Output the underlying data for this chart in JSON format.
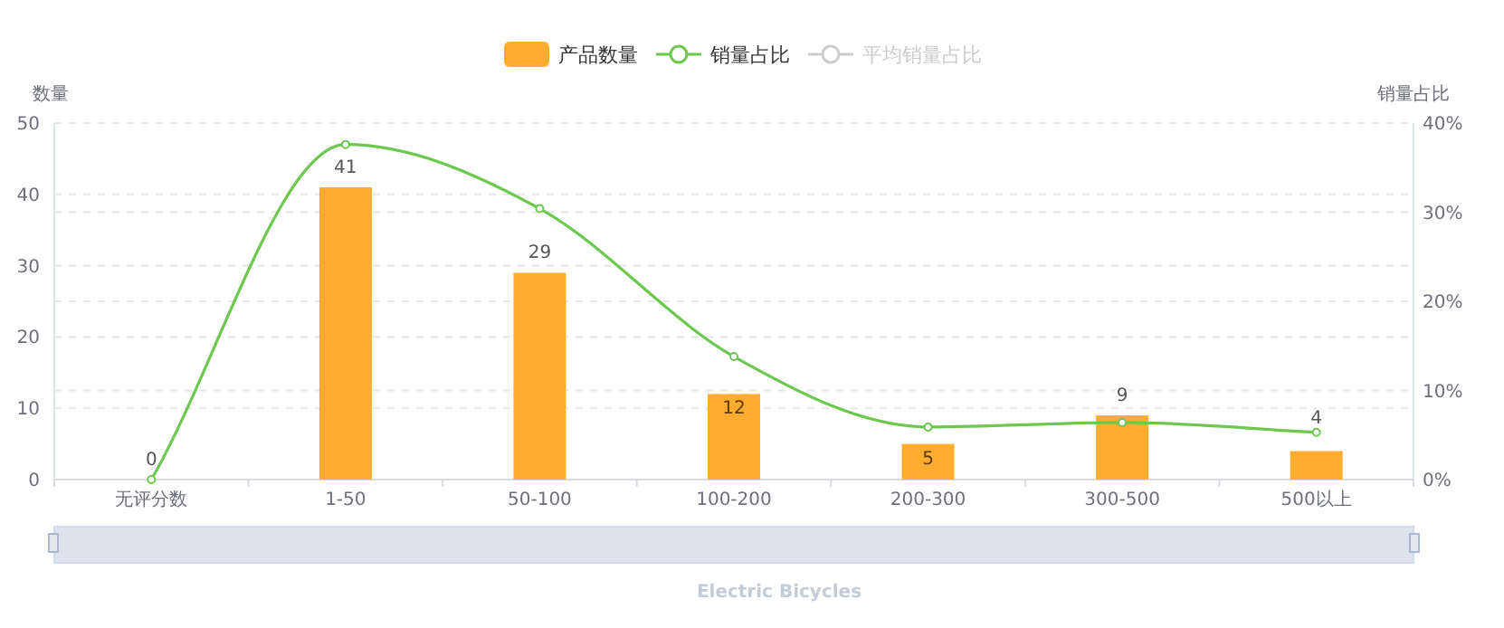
{
  "chart_data": {
    "type": "bar",
    "title": "Electric Bicycles",
    "ylabel": "数量",
    "y2label": "销量占比",
    "categories": [
      "无评分数",
      "1-50",
      "50-100",
      "100-200",
      "200-300",
      "300-500",
      "500以上"
    ],
    "series": [
      {
        "name": "产品数量",
        "color": "#ffac2f",
        "values": [
          0,
          41,
          29,
          12,
          5,
          9,
          4
        ],
        "value_labels": [
          "0",
          "41",
          "29",
          "12",
          "5",
          "9",
          "4"
        ]
      },
      {
        "name": "销量占比",
        "type": "line",
        "axis": "y2",
        "marker": "circle",
        "color": "#6cc84e",
        "values": [
          0,
          37.6,
          30.4,
          13.8,
          5.9,
          6.4,
          5.3
        ]
      },
      {
        "name": "平均销量占比",
        "type": "line",
        "axis": "y2",
        "marker": "circle",
        "color": "#cccccc",
        "values": [
          null,
          null,
          null,
          null,
          null,
          null,
          null
        ]
      }
    ],
    "ylim": [
      0,
      50
    ],
    "yticks": [
      0,
      10,
      20,
      30,
      40,
      50
    ],
    "y2lim": [
      0,
      40
    ],
    "y2ticks": [
      {
        "value": 0,
        "label": "0%"
      },
      {
        "value": 10,
        "label": "10%"
      },
      {
        "value": 20,
        "label": "20%"
      },
      {
        "value": 30,
        "label": "30%"
      },
      {
        "value": 40,
        "label": "40%"
      }
    ],
    "grid": true,
    "legend": "top"
  }
}
